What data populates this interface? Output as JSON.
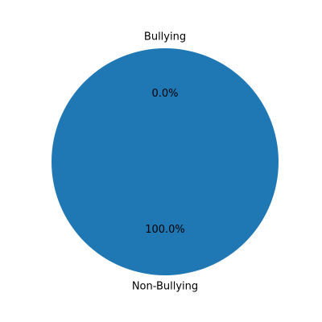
{
  "chart_data": {
    "type": "pie",
    "categories": [
      "Bullying",
      "Non-Bullying"
    ],
    "values": [
      0.0,
      100.0
    ],
    "percent_labels": [
      "0.0%",
      "100.0%"
    ],
    "colors": [
      "#ff7f0e",
      "#1f77b4"
    ],
    "title": "",
    "legend": "none"
  }
}
